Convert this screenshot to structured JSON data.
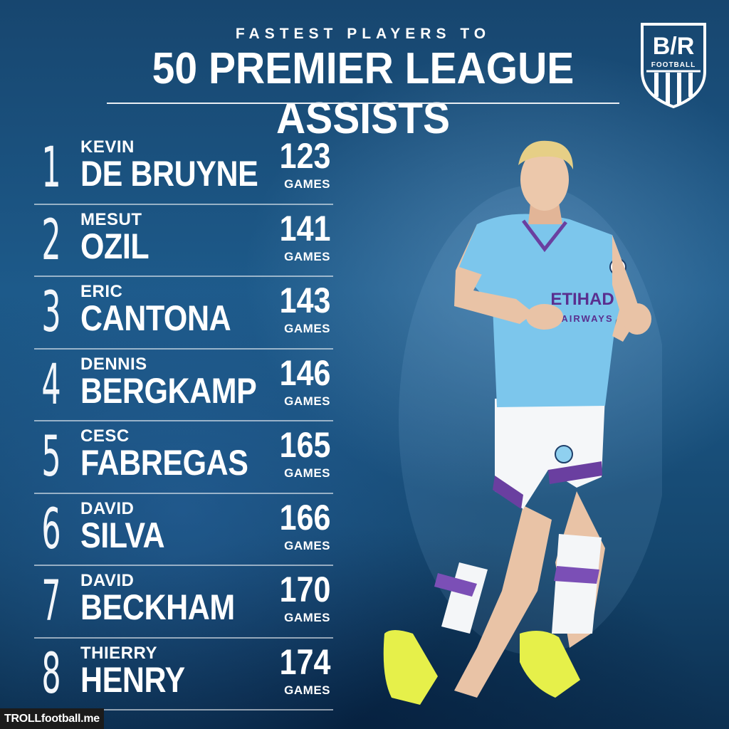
{
  "header": {
    "subtitle": "FASTEST PLAYERS TO",
    "title": "50 PREMIER LEAGUE ASSISTS"
  },
  "logo": {
    "mark": "B/R",
    "sub": "FOOTBALL"
  },
  "games_label": "GAMES",
  "players": [
    {
      "rank": "1",
      "first": "KEVIN",
      "last": "DE BRUYNE",
      "games": "123",
      "label": "GAMES"
    },
    {
      "rank": "2",
      "first": "MESUT",
      "last": "OZIL",
      "games": "141",
      "label": "GAMES"
    },
    {
      "rank": "3",
      "first": "ERIC",
      "last": "CANTONA",
      "games": "143",
      "label": "GAMES"
    },
    {
      "rank": "4",
      "first": "DENNIS",
      "last": "BERGKAMP",
      "games": "146",
      "label": "GAMES"
    },
    {
      "rank": "5",
      "first": "CESC",
      "last": "FABREGAS",
      "games": "165",
      "label": "GAMES"
    },
    {
      "rank": "6",
      "first": "DAVID",
      "last": "SILVA",
      "games": "166",
      "label": "GAMES"
    },
    {
      "rank": "7",
      "first": "DAVID",
      "last": "BECKHAM",
      "games": "170",
      "label": "GAMES"
    },
    {
      "rank": "8",
      "first": "THIERRY",
      "last": "HENRY",
      "games": "174",
      "label": "GAMES"
    }
  ],
  "jersey": {
    "sponsor_top": "ETIHAD",
    "sponsor_bottom": "AIRWAYS"
  },
  "watermark": "TROLLfootball.me",
  "colors": {
    "background": "#1d5a8a",
    "jersey": "#7cc6ec",
    "accent": "#6a3fa0"
  }
}
